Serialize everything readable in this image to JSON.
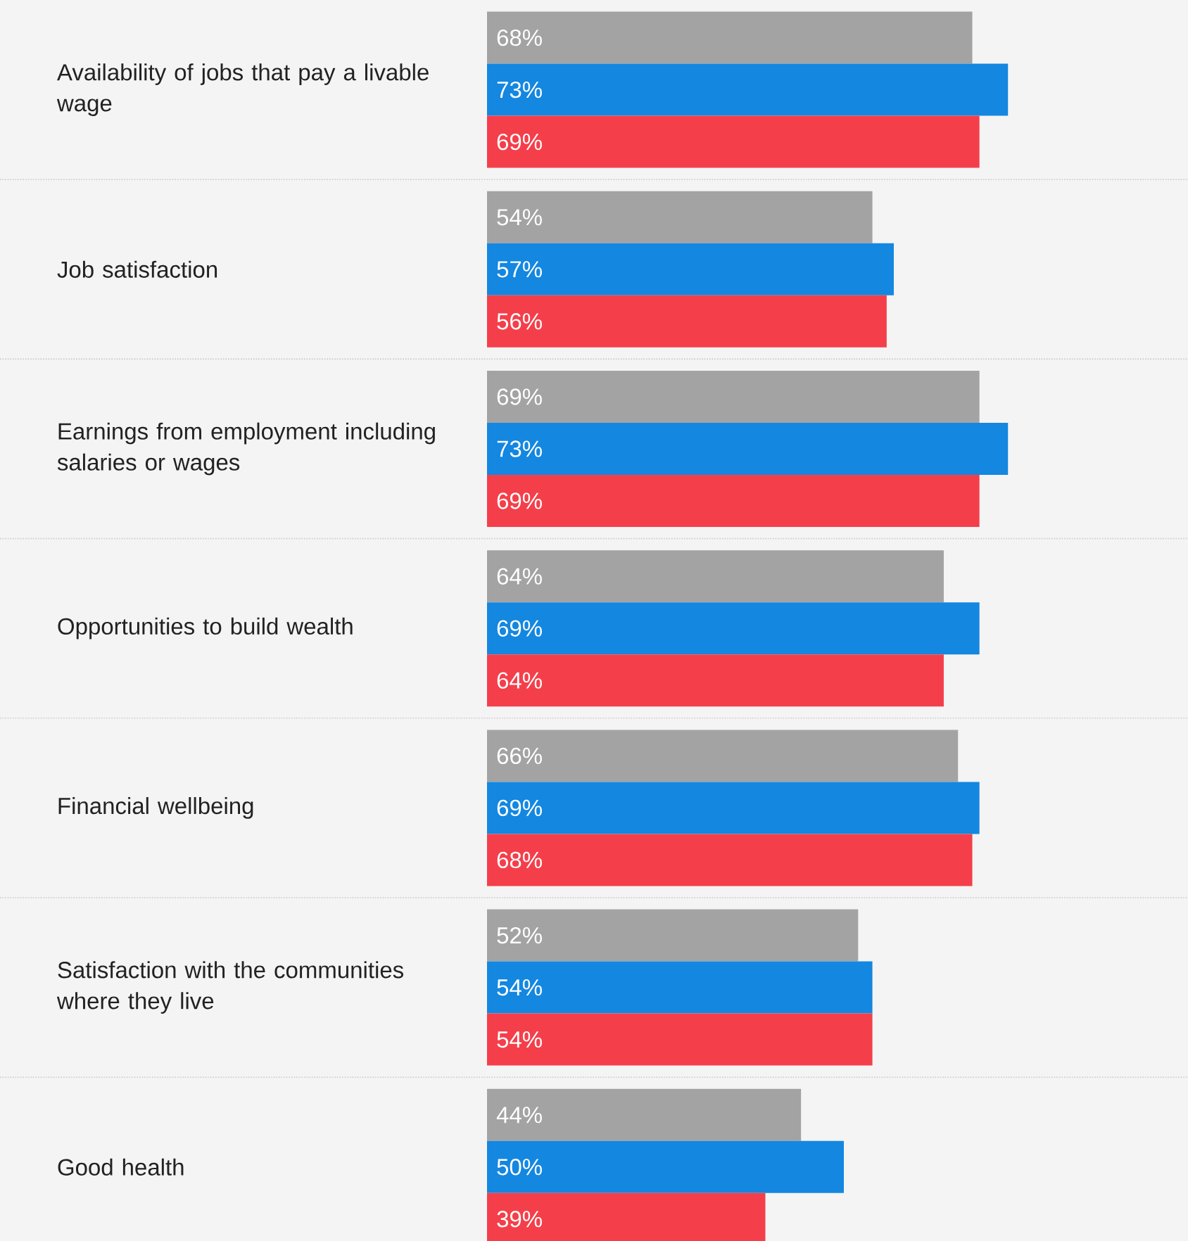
{
  "chart_data": {
    "type": "bar",
    "orientation": "horizontal",
    "data_labels": false,
    "tick_labels": "y",
    "categories": [
      "Availability of jobs that pay a livable wage",
      "Job satisfaction",
      "Earnings from employment including salaries or wages",
      "Opportunities to build wealth",
      "Financial wellbeing",
      "Satisfaction with the communities where they live",
      "Good health"
    ],
    "series": [
      {
        "color": "#a3a3a3",
        "values": [
          68,
          54,
          69,
          64,
          66,
          52,
          44
        ],
        "value_labels": [
          "68%",
          "54%",
          "69%",
          "64%",
          "66%",
          "52%",
          "44%"
        ]
      },
      {
        "color": "#1487e0",
        "values": [
          73,
          57,
          73,
          69,
          69,
          54,
          50
        ],
        "value_labels": [
          "73%",
          "57%",
          "73%",
          "69%",
          "69%",
          "54%",
          "50%"
        ]
      },
      {
        "color": "#f43f4a",
        "values": [
          69,
          56,
          69,
          64,
          68,
          54,
          39
        ],
        "value_labels": [
          "69%",
          "56%",
          "69%",
          "64%",
          "68%",
          "54%",
          "39%"
        ]
      }
    ]
  }
}
